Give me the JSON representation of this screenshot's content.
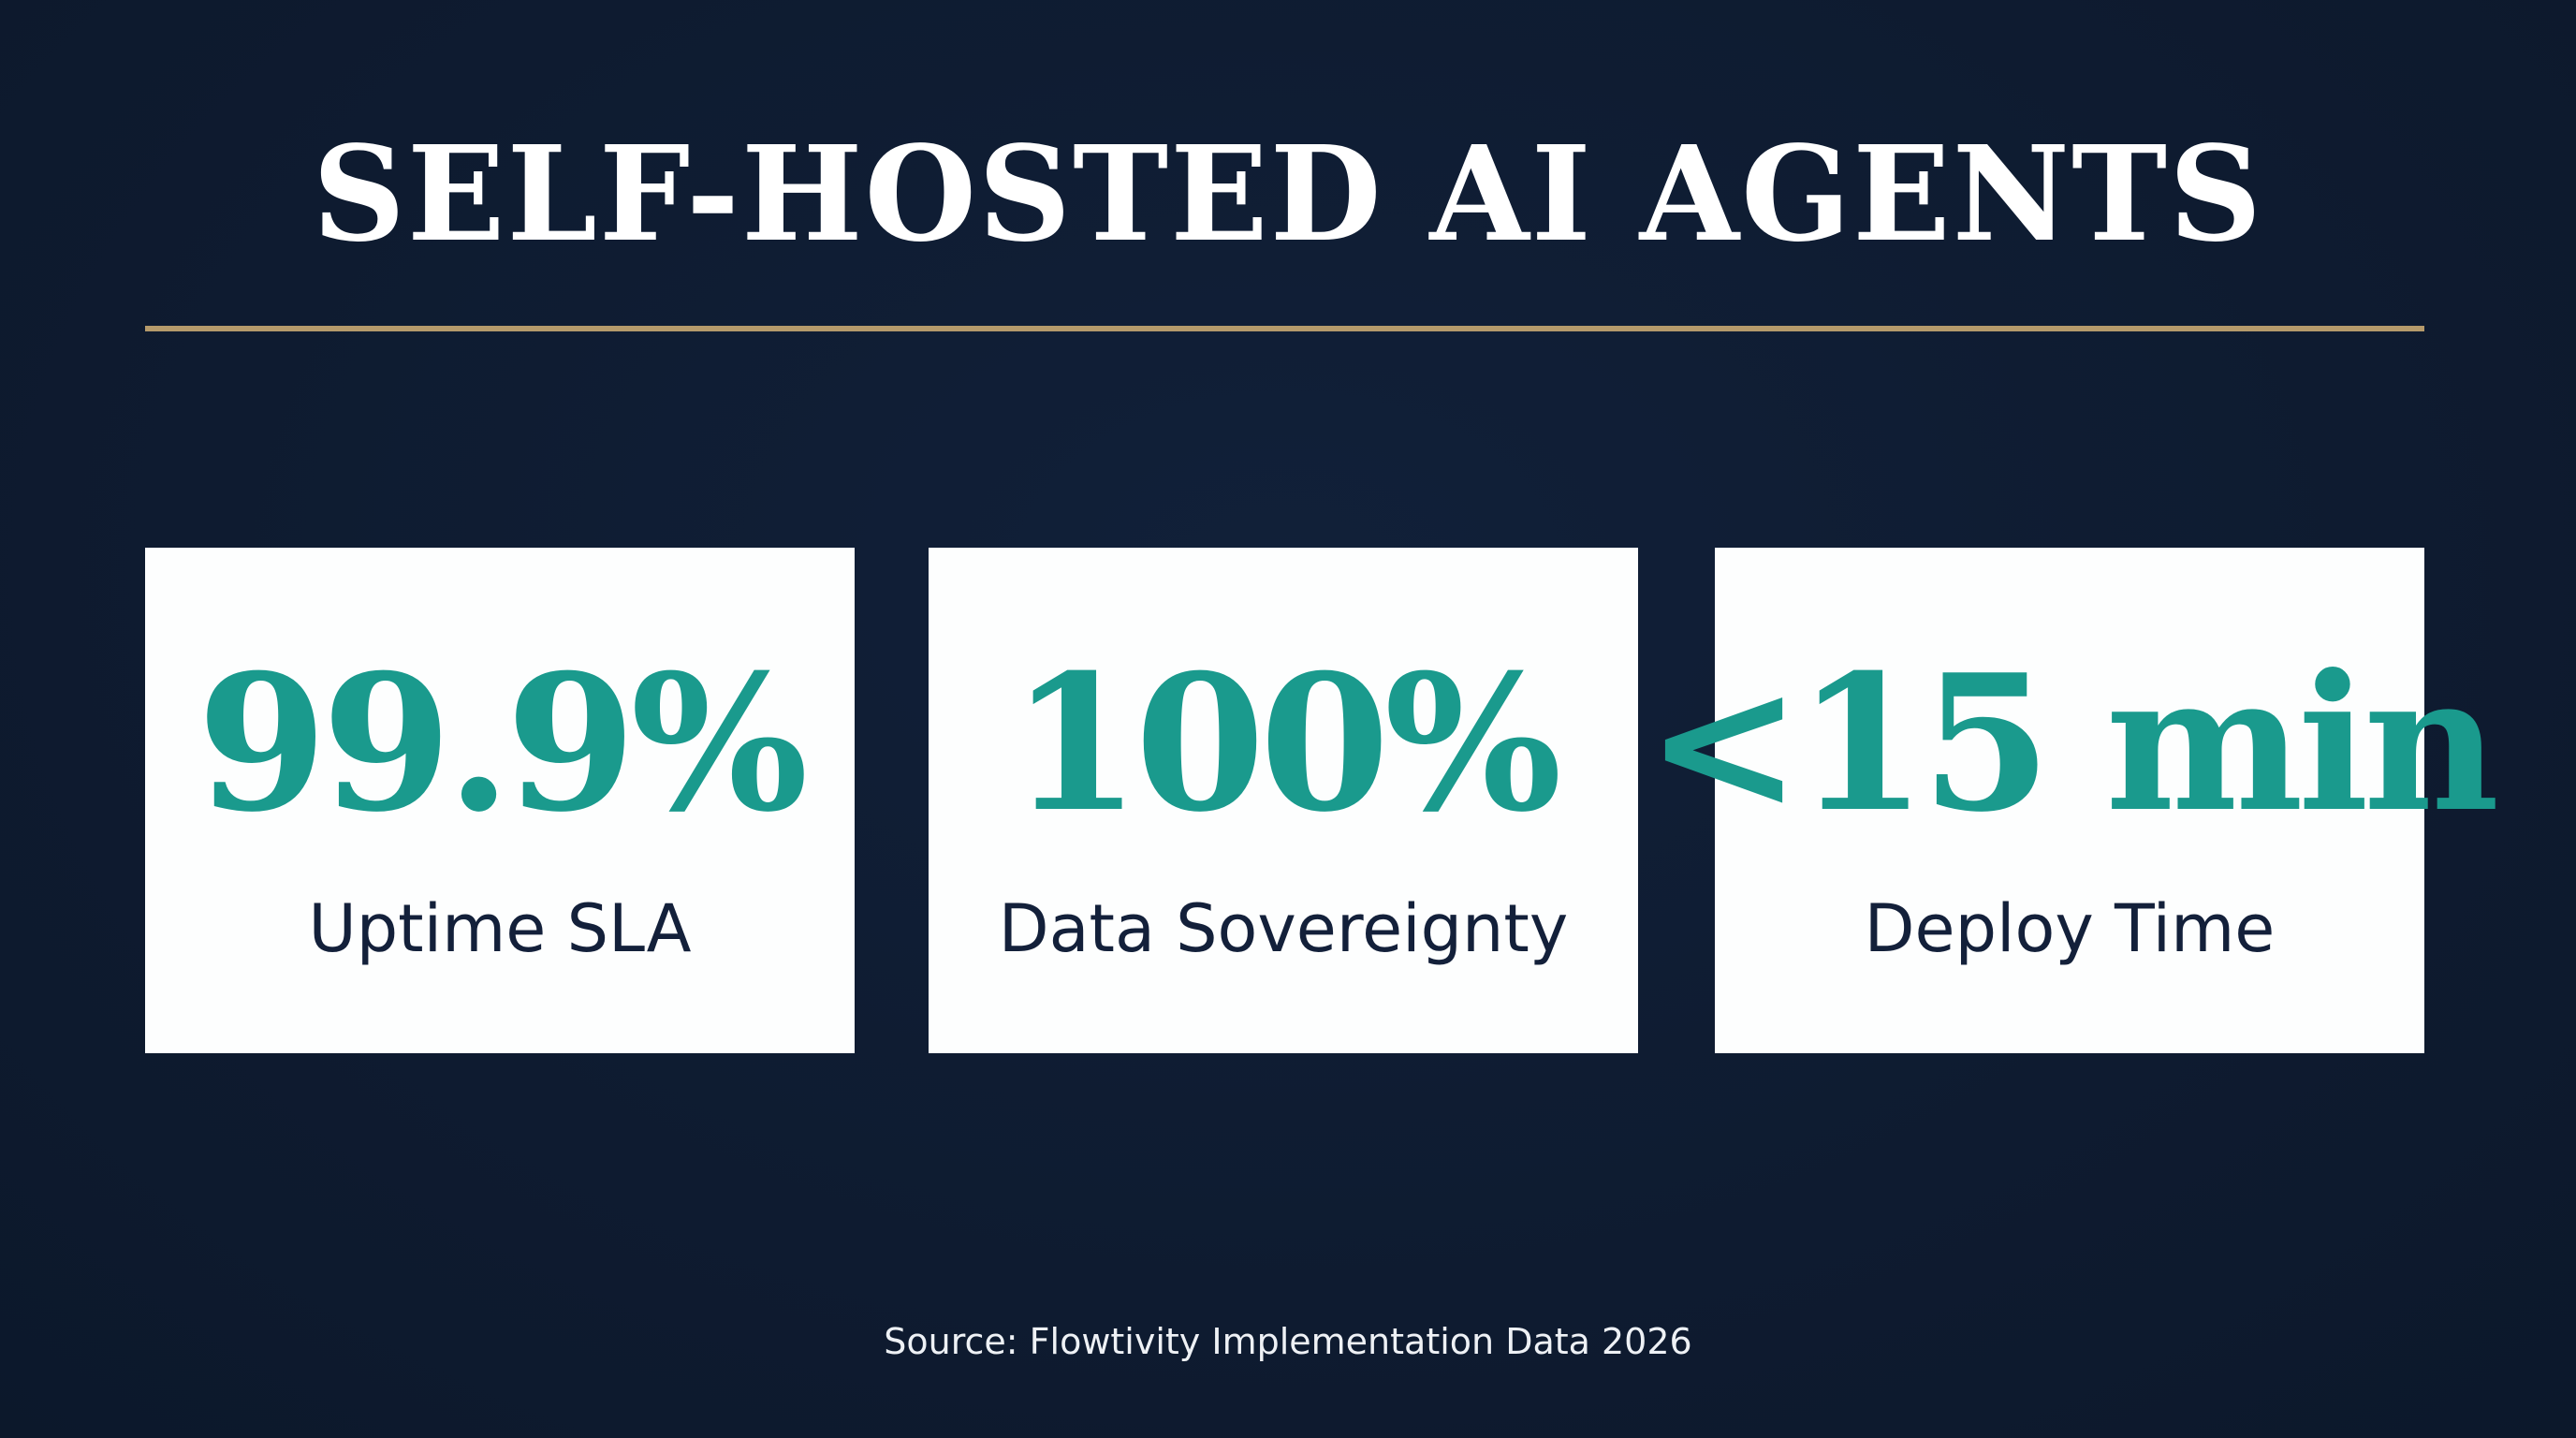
{
  "slide": {
    "title": "SELF-HOSTED AI AGENTS",
    "colors": {
      "background": "#0e1b30",
      "rule": "#b59a6b",
      "card_background": "#fdfefe",
      "stat_value": "#1a9a8d",
      "stat_label": "#13203a",
      "title": "#ffffff",
      "source": "#eef1f5"
    },
    "stats": [
      {
        "value": "99.9%",
        "label": "Uptime SLA"
      },
      {
        "value": "100%",
        "label": "Data Sovereignty"
      },
      {
        "value": "<15 min",
        "label": "Deploy Time"
      }
    ],
    "source": "Source: Flowtivity Implementation Data 2026"
  }
}
